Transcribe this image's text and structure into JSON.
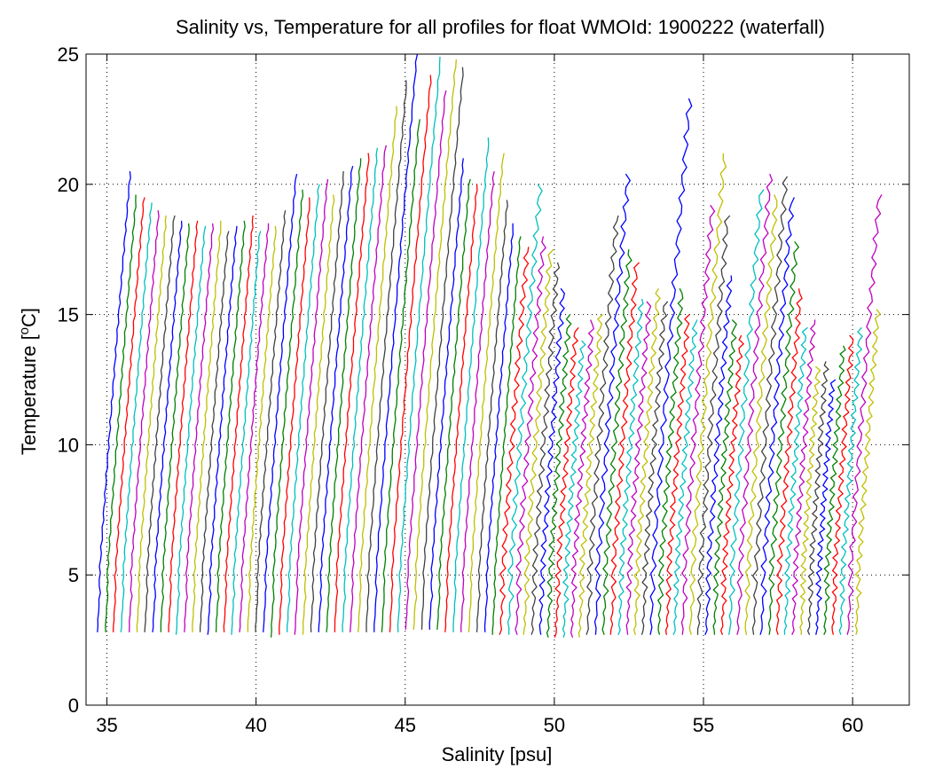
{
  "chart_data": {
    "type": "line",
    "title": "Salinity vs, Temperature for all profiles for float WMOId: 1900222 (waterfall)",
    "xlabel": "Salinity [psu]",
    "ylabel_main": "Temperature [",
    "ylabel_sup": "o",
    "ylabel_end": "C]",
    "xlim": [
      34.3,
      61.9
    ],
    "ylim": [
      0,
      25
    ],
    "xticks": [
      35,
      40,
      45,
      50,
      55,
      60
    ],
    "yticks": [
      0,
      5,
      10,
      15,
      20,
      25
    ],
    "grid": true,
    "legend": "none",
    "profile_count": 97,
    "waterfall_start_salinity": 34.75,
    "waterfall_step": 0.265,
    "colors": [
      "#0000ff",
      "#008000",
      "#ff0000",
      "#00bfbf",
      "#bf00bf",
      "#bfbf00",
      "#404040"
    ],
    "top_temperatures": [
      20.5,
      19.6,
      19.5,
      19.3,
      19.0,
      18.8,
      18.8,
      18.6,
      18.5,
      18.6,
      18.4,
      18.5,
      18.6,
      18.2,
      18.4,
      18.6,
      18.8,
      18.2,
      18.5,
      18.4,
      19.0,
      20.4,
      19.8,
      19.5,
      20.0,
      20.2,
      19.6,
      20.5,
      20.7,
      21.0,
      21.2,
      21.4,
      21.5,
      23.0,
      24.0,
      25.0,
      22.5,
      24.2,
      24.9,
      23.6,
      24.8,
      24.5,
      21.0,
      20.2,
      20.0,
      21.8,
      20.5,
      21.2,
      19.4,
      18.5,
      18.0,
      17.6,
      20.0,
      18.0,
      17.5,
      17.0,
      16.0,
      15.0,
      14.5,
      14.0,
      14.8,
      15.0,
      18.8,
      20.4,
      17.5,
      17.0,
      15.6,
      15.5,
      16.0,
      15.5,
      23.3,
      16.0,
      15.0,
      14.8,
      19.2,
      21.2,
      18.8,
      16.5,
      14.8,
      14.2,
      19.8,
      20.4,
      19.6,
      20.3,
      19.5,
      17.8,
      16.0,
      14.5,
      14.8,
      13.0,
      13.2,
      12.5,
      13.8,
      14.2,
      14.5,
      19.6,
      15.2
    ],
    "bottom_temperatures": [
      2.8,
      2.8,
      2.8,
      2.8,
      2.8,
      2.8,
      2.8,
      2.8,
      2.8,
      2.8,
      2.7,
      2.8,
      2.8,
      2.8,
      2.7,
      2.8,
      2.8,
      2.7,
      2.8,
      2.8,
      2.8,
      2.8,
      2.6,
      2.7,
      2.8,
      2.7,
      2.7,
      2.8,
      2.8,
      2.8,
      2.8,
      2.8,
      2.8,
      2.8,
      2.8,
      2.8,
      2.8,
      2.8,
      2.8,
      2.9,
      2.9,
      2.9,
      2.9,
      2.9,
      2.8,
      2.8,
      2.8,
      2.8,
      2.8,
      2.8,
      2.7,
      2.7,
      2.7,
      2.7,
      2.7,
      2.7,
      2.7,
      2.6,
      2.6,
      2.6,
      2.6,
      2.6,
      2.7,
      2.7,
      2.7,
      2.7,
      2.7,
      2.7,
      2.7,
      2.7,
      2.7,
      2.7,
      2.7,
      2.7,
      2.7,
      2.7,
      2.7,
      2.7,
      2.7,
      2.7,
      2.7,
      2.7,
      2.7,
      2.7,
      2.7,
      2.7,
      2.7,
      2.7,
      2.7,
      2.7,
      2.7,
      2.7,
      2.7,
      2.7,
      2.7,
      2.7,
      2.7
    ]
  }
}
